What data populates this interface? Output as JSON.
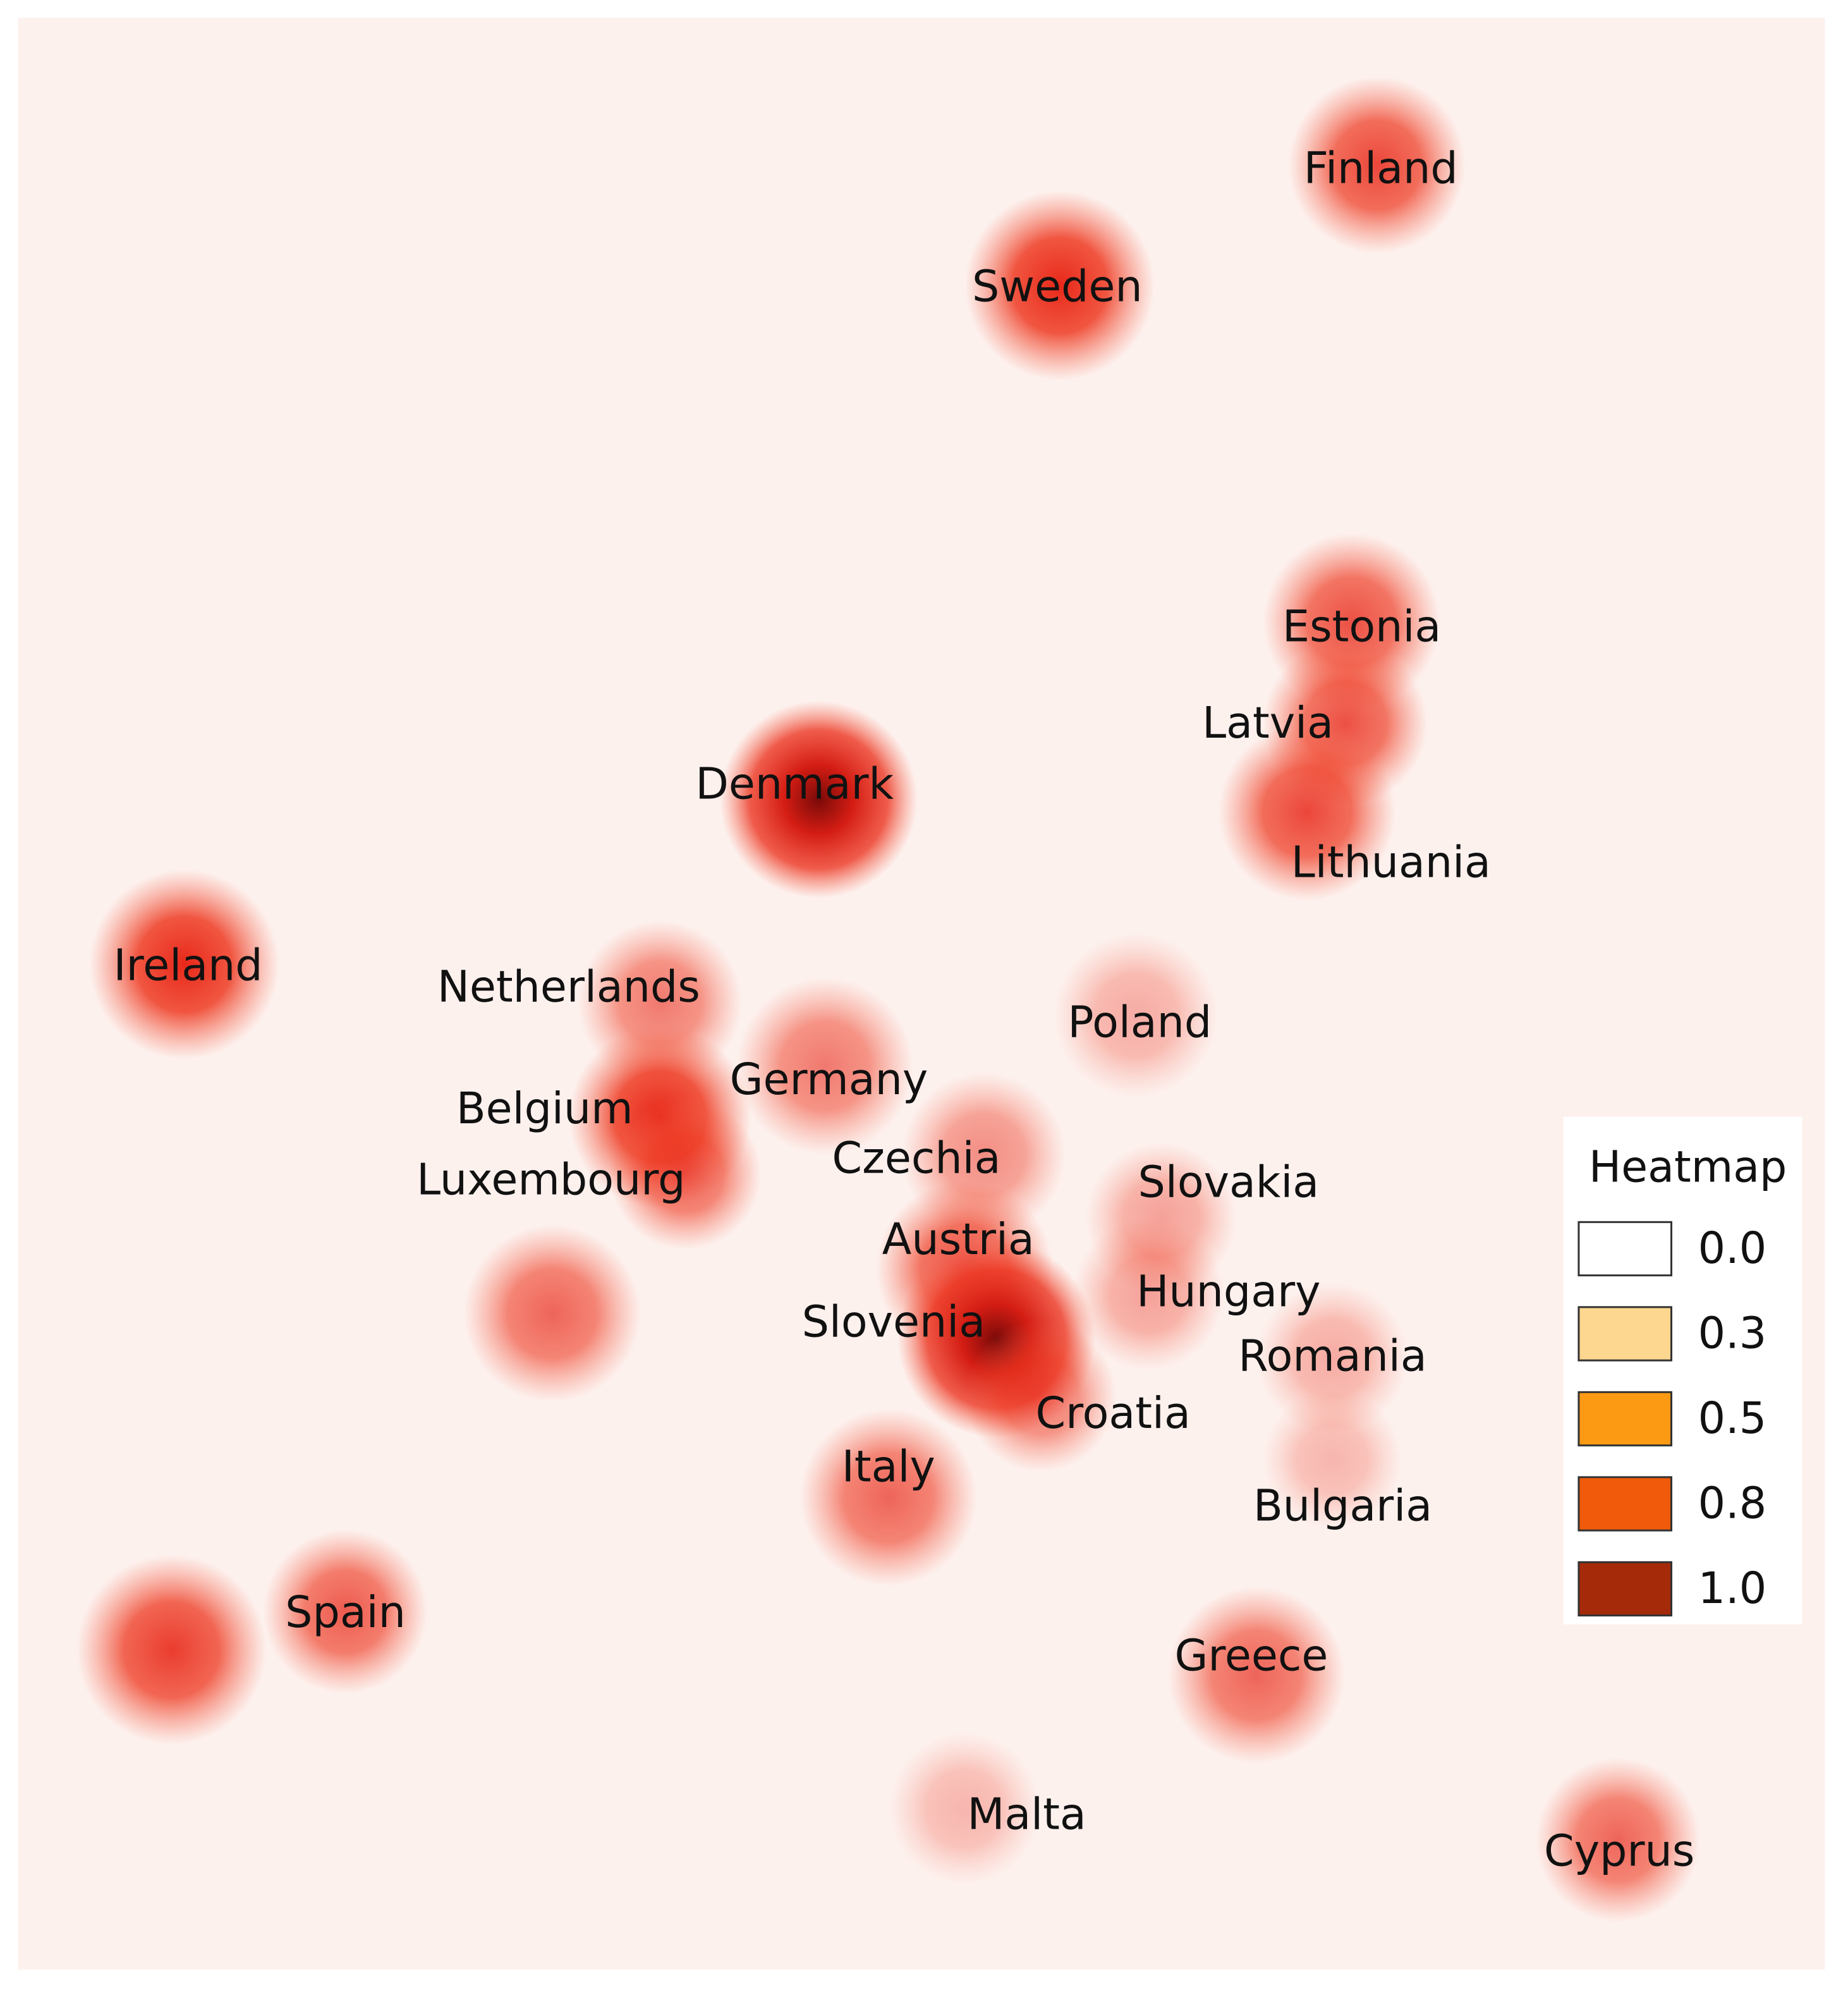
{
  "map": {
    "labels": [
      "Finland",
      "Sweden",
      "Estonia",
      "Latvia",
      "Lithuania",
      "Denmark",
      "Ireland",
      "Netherlands",
      "Germany",
      "Belgium",
      "Luxembourg",
      "Poland",
      "Czechia",
      "Slovakia",
      "Austria",
      "Hungary",
      "Slovenia",
      "Romania",
      "Croatia",
      "Italy",
      "Bulgaria",
      "Spain",
      "Greece",
      "Malta",
      "Cyprus"
    ]
  },
  "legend": {
    "title": "Heatmap",
    "items": [
      {
        "label": "0.0",
        "color": "#ffffff"
      },
      {
        "label": "0.3",
        "color": "#fdd78f"
      },
      {
        "label": "0.5",
        "color": "#fd9a14"
      },
      {
        "label": "0.8",
        "color": "#f05a0a"
      },
      {
        "label": "1.0",
        "color": "#a52a0a"
      }
    ]
  }
}
